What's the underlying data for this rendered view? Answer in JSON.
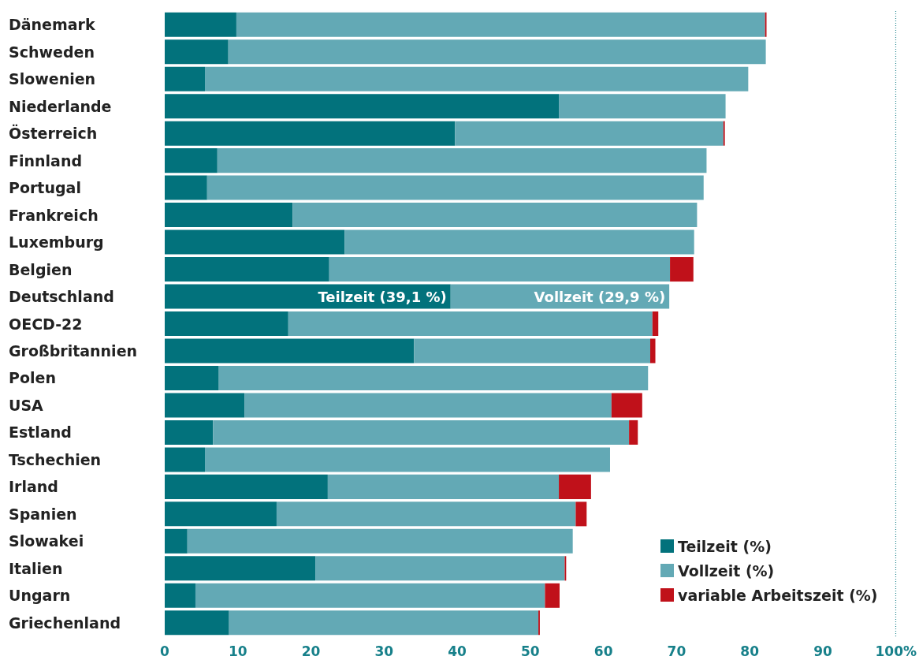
{
  "chart_data": {
    "type": "bar",
    "orientation": "horizontal",
    "stacked": true,
    "categories": [
      "Dänemark",
      "Schweden",
      "Slowenien",
      "Niederlande",
      "Österreich",
      "Finnland",
      "Portugal",
      "Frankreich",
      "Luxemburg",
      "Belgien",
      "Deutschland",
      "OECD-22",
      "Großbritannien",
      "Polen",
      "USA",
      "Estland",
      "Tschechien",
      "Irland",
      "Spanien",
      "Slowakei",
      "Italien",
      "Ungarn",
      "Griechenland"
    ],
    "series": [
      {
        "name": "Teilzeit (%)",
        "color": "#02727c",
        "values": [
          9.8,
          8.7,
          5.5,
          53.9,
          39.7,
          7.2,
          5.8,
          17.5,
          24.6,
          22.5,
          39.1,
          16.9,
          34.1,
          7.4,
          10.9,
          6.6,
          5.5,
          22.3,
          15.3,
          3.1,
          20.6,
          4.2,
          8.8
        ],
        "value_labels": [
          null,
          null,
          null,
          null,
          null,
          null,
          null,
          null,
          null,
          null,
          "Teilzeit (39,1 %)",
          null,
          null,
          null,
          null,
          null,
          null,
          null,
          null,
          null,
          null,
          null,
          null
        ]
      },
      {
        "name": "Vollzeit (%)",
        "color": "#63a9b5",
        "values": [
          72.3,
          73.5,
          74.3,
          22.8,
          36.7,
          66.9,
          67.9,
          55.3,
          47.8,
          46.6,
          29.9,
          49.8,
          32.3,
          58.7,
          50.2,
          56.9,
          55.4,
          31.6,
          40.9,
          52.7,
          34.1,
          47.8,
          42.3
        ],
        "value_labels": [
          null,
          null,
          null,
          null,
          null,
          null,
          null,
          null,
          null,
          null,
          "Vollzeit (29,9 %)",
          null,
          null,
          null,
          null,
          null,
          null,
          null,
          null,
          null,
          null,
          null,
          null
        ]
      },
      {
        "name": "variable Arbeitszeit (%)",
        "color": "#c0111a",
        "values": [
          0.2,
          0,
          0,
          0,
          0.2,
          0,
          0,
          0,
          0,
          3.2,
          0,
          0.8,
          0.7,
          0,
          4.2,
          1.2,
          0,
          4.4,
          1.5,
          0,
          0.2,
          2.0,
          0.2
        ]
      }
    ],
    "xlim": [
      0,
      100
    ],
    "xticks": [
      0,
      10,
      20,
      30,
      40,
      50,
      60,
      70,
      80,
      90,
      {
        "value": 100,
        "label": "100%"
      }
    ],
    "ref_lines": [
      {
        "axis": "x",
        "value": 100,
        "color": "#2a8a93",
        "line_style": "dotted"
      }
    ],
    "grid": false,
    "legend": "bottom right"
  }
}
